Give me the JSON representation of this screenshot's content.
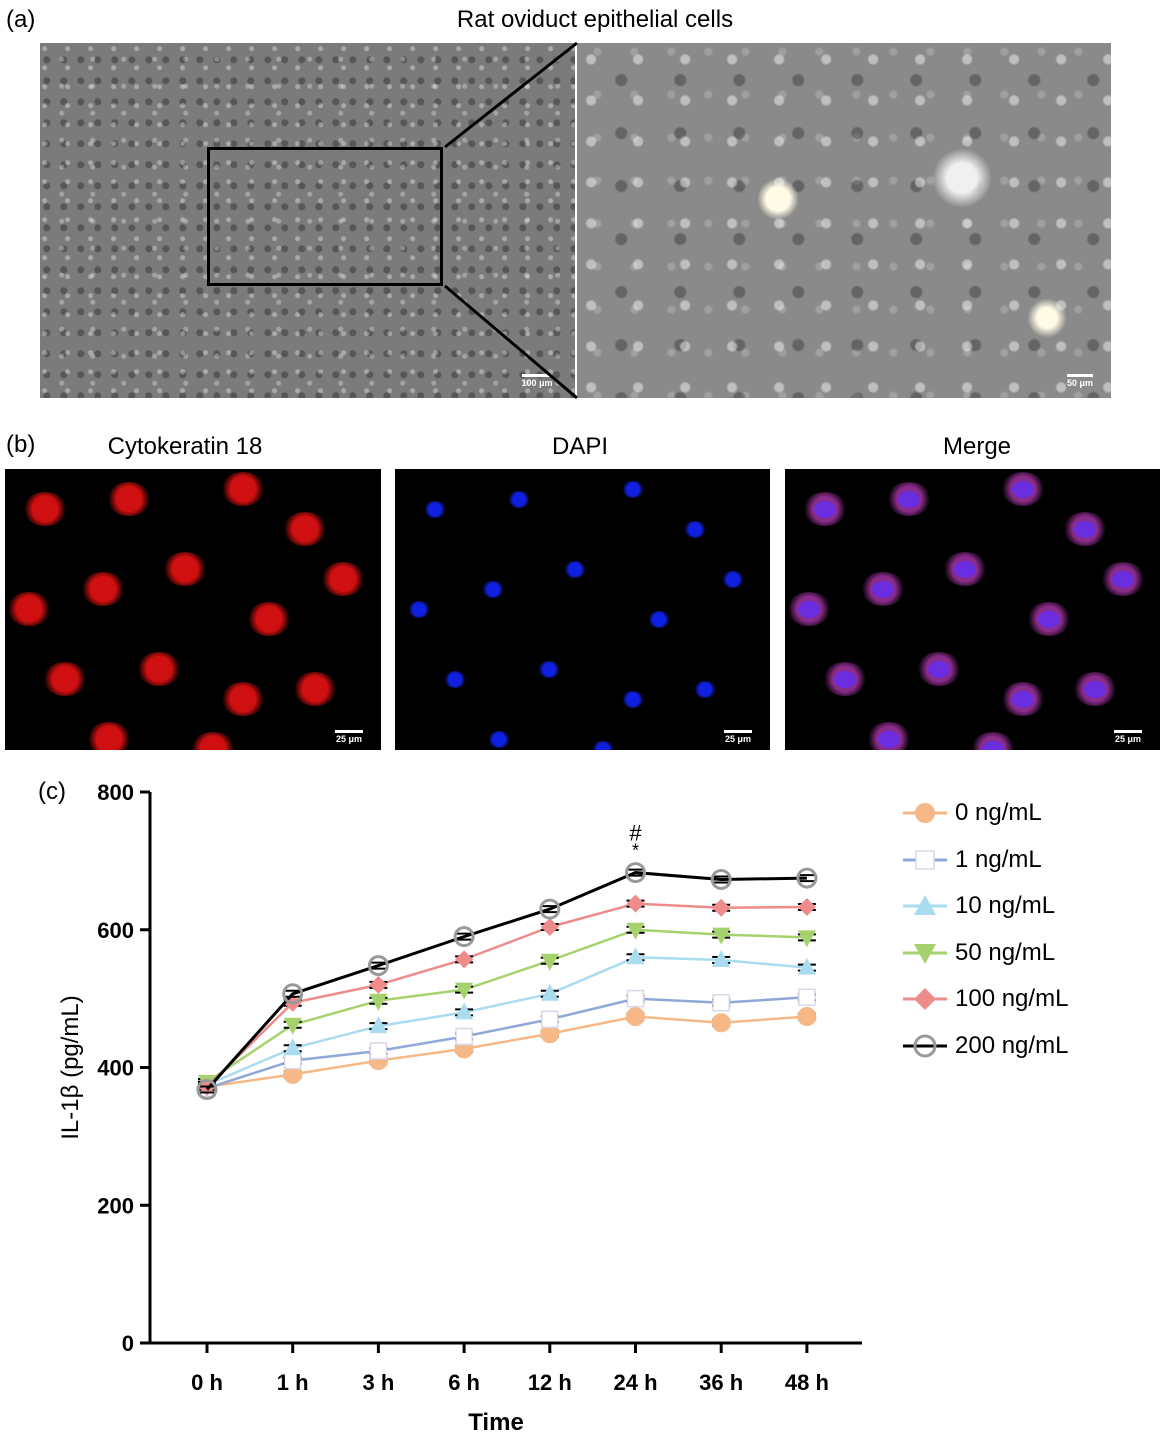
{
  "panel_a": {
    "letter": "(a)",
    "title": "Rat oviduct epithelial cells",
    "scale_left": "100 μm",
    "scale_right": "50 μm"
  },
  "panel_b": {
    "letter": "(b)",
    "images": [
      {
        "label": "Cytokeratin 18",
        "scale": "25 μm",
        "color": "#d01010"
      },
      {
        "label": "DAPI",
        "scale": "25 μm",
        "color": "#1020e0"
      },
      {
        "label": "Merge",
        "scale": "25 μm",
        "color": "#8a2c8a"
      }
    ]
  },
  "panel_c": {
    "letter": "(c)"
  },
  "chart_data": {
    "type": "line",
    "categories": [
      "0 h",
      "1 h",
      "3 h",
      "6 h",
      "12 h",
      "24 h",
      "36 h",
      "48 h"
    ],
    "xlabel": "Time",
    "ylabel": "IL-1β (pg/mL)",
    "ylim": [
      0,
      800
    ],
    "yticks": [
      0,
      200,
      400,
      600,
      800
    ],
    "annotations": [
      {
        "category": "24 h",
        "symbols": [
          "#",
          "*"
        ]
      }
    ],
    "legend_position": "top-right",
    "series": [
      {
        "name": "0 ng/mL",
        "color": "#f5b886",
        "marker": "circle-filled",
        "values": [
          372,
          390,
          410,
          427,
          449,
          474,
          465,
          474
        ]
      },
      {
        "name": "1 ng/mL",
        "color": "#8fa8d8",
        "marker": "square-open",
        "values": [
          370,
          410,
          424,
          445,
          470,
          500,
          494,
          502
        ]
      },
      {
        "name": "10 ng/mL",
        "color": "#a8dcee",
        "marker": "triangle-up",
        "values": [
          375,
          428,
          460,
          480,
          507,
          560,
          556,
          545
        ]
      },
      {
        "name": "50 ng/mL",
        "color": "#a6d26e",
        "marker": "triangle-down",
        "values": [
          379,
          462,
          497,
          513,
          555,
          600,
          593,
          589
        ]
      },
      {
        "name": "100 ng/mL",
        "color": "#ee8b8b",
        "marker": "diamond",
        "values": [
          372,
          494,
          520,
          557,
          604,
          638,
          632,
          633
        ]
      },
      {
        "name": "200 ng/mL",
        "color": "#000000",
        "marker": "circle-open",
        "values": [
          368,
          507,
          548,
          590,
          630,
          683,
          673,
          675
        ]
      }
    ]
  }
}
